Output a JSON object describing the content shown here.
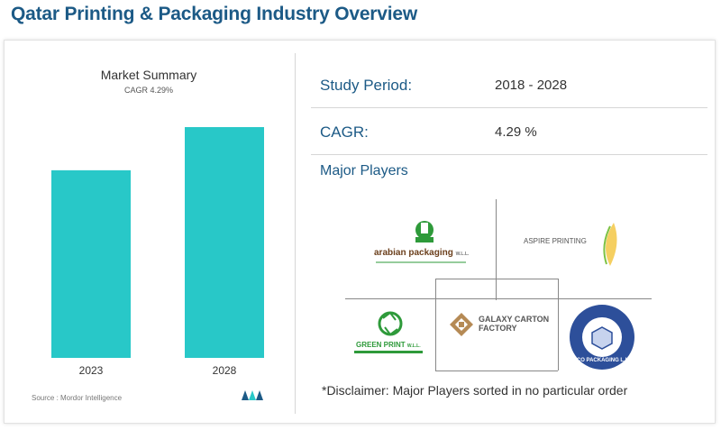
{
  "page_title": "Qatar Printing & Packaging Industry Overview",
  "summary": {
    "title": "Market Summary",
    "subtitle": "CAGR 4.29%",
    "source": "Source : Mordor Intelligence"
  },
  "chart_data": {
    "type": "bar",
    "categories": [
      "2023",
      "2028"
    ],
    "values": [
      1.0,
      1.23
    ],
    "title": "Market Summary",
    "subtitle": "CAGR 4.29%",
    "grid": false,
    "color": "#28c8c8"
  },
  "overview": {
    "study_period_label": "Study Period:",
    "study_period_value": "2018 - 2028",
    "cagr_label": "CAGR:",
    "cagr_value": "4.29 %",
    "major_players_label": "Major Players",
    "disclaimer": "*Disclaimer: Major Players sorted in no particular order"
  },
  "players": [
    {
      "name": "arabian packaging",
      "suffix": "W.L.L."
    },
    {
      "name": "ASPIRE PRINTING"
    },
    {
      "name": "GALAXY CARTON FACTORY"
    },
    {
      "name": "GREEN PRINT",
      "suffix": "W.L.L."
    },
    {
      "name": "MECO PACKAGING L.L.C."
    }
  ],
  "colors": {
    "accent": "#1c5a86",
    "bar": "#28c8c8"
  }
}
